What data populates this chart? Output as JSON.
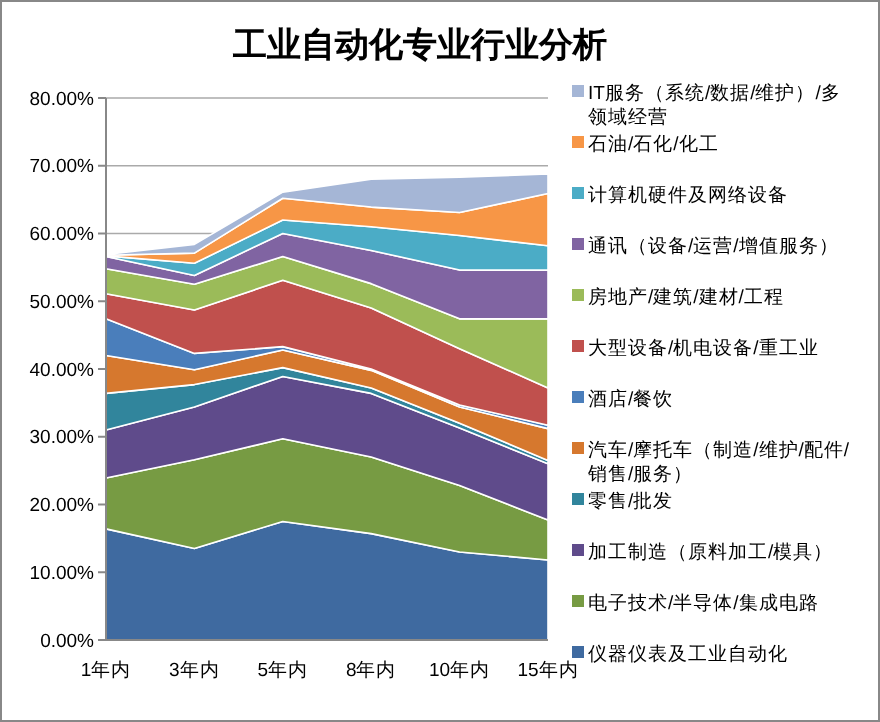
{
  "chart_data": {
    "type": "area",
    "stacked": true,
    "title": "工业自动化专业行业分析",
    "categories": [
      "1年内",
      "3年内",
      "5年内",
      "8年内",
      "10年内",
      "15年内"
    ],
    "ylim": [
      0,
      80
    ],
    "yticks": [
      {
        "value": 0,
        "label": "0.00%"
      },
      {
        "value": 10,
        "label": "10.00%"
      },
      {
        "value": 20,
        "label": "20.00%"
      },
      {
        "value": 30,
        "label": "30.00%"
      },
      {
        "value": 40,
        "label": "40.00%"
      },
      {
        "value": 50,
        "label": "50.00%"
      },
      {
        "value": 60,
        "label": "60.00%"
      },
      {
        "value": 70,
        "label": "70.00%"
      },
      {
        "value": 80,
        "label": "80.00%"
      }
    ],
    "grid": "y",
    "legend": "right",
    "series": [
      {
        "name": "仪器仪表及工业自动化",
        "color": "#3f6aa0",
        "values": [
          16.4,
          13.5,
          17.5,
          15.7,
          13.0,
          11.8
        ]
      },
      {
        "name": "电子技术/半导体/集成电路",
        "color": "#779b43",
        "values": [
          7.5,
          13.1,
          12.2,
          11.3,
          9.8,
          5.9
        ]
      },
      {
        "name": "加工制造（原料加工/模具）",
        "color": "#5f4b8b",
        "values": [
          7.1,
          7.8,
          9.2,
          9.4,
          8.5,
          8.3
        ]
      },
      {
        "name": "零售/批发",
        "color": "#31859c",
        "values": [
          5.4,
          3.3,
          1.3,
          0.8,
          0.7,
          0.5
        ]
      },
      {
        "name": "汽车/摩托车（制造/维护/配件/销售/服务）",
        "color": "#d6782e",
        "values": [
          5.6,
          2.2,
          2.6,
          2.6,
          2.4,
          4.7
        ]
      },
      {
        "name": "酒店/餐饮",
        "color": "#4a7ebb",
        "values": [
          5.4,
          2.4,
          0.5,
          0.2,
          0.3,
          0.5
        ]
      },
      {
        "name": "大型设备/机电设备/重工业",
        "color": "#c0504d",
        "values": [
          3.7,
          6.4,
          9.8,
          9.0,
          8.3,
          5.5
        ]
      },
      {
        "name": "房地产/建筑/建材/工程",
        "color": "#9bbb59",
        "values": [
          3.7,
          3.8,
          3.5,
          3.6,
          4.4,
          10.2
        ]
      },
      {
        "name": "通讯（设备/运营/增值服务）",
        "color": "#8064a2",
        "values": [
          1.8,
          1.3,
          3.4,
          4.9,
          7.2,
          7.2
        ]
      },
      {
        "name": "计算机硬件及网络设备",
        "color": "#4bacc6",
        "values": [
          0.1,
          1.8,
          2.0,
          3.5,
          5.1,
          3.6
        ]
      },
      {
        "name": "石油/石化/化工",
        "color": "#f79646",
        "values": [
          0.1,
          1.5,
          3.2,
          2.9,
          3.4,
          7.7
        ]
      },
      {
        "name": "IT服务（系统/数据/维护）/多领域经营",
        "color": "#a5b6d6",
        "values": [
          0.1,
          1.3,
          0.9,
          4.1,
          5.2,
          2.9
        ]
      }
    ]
  }
}
